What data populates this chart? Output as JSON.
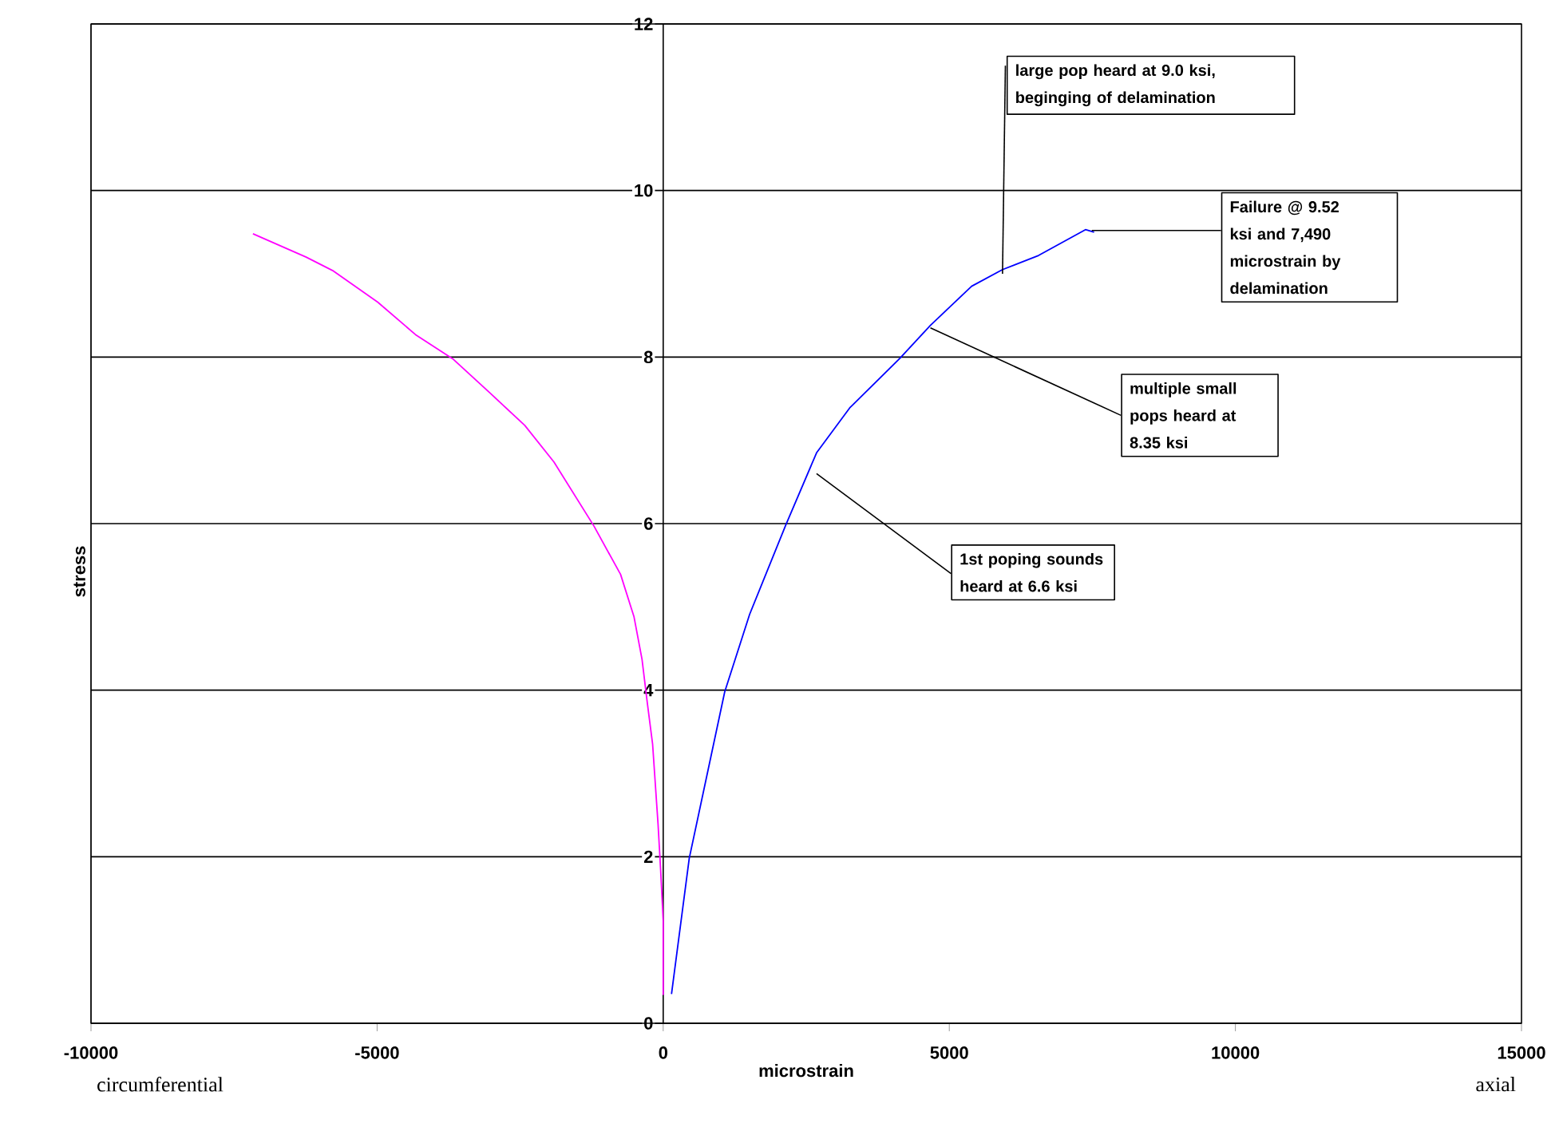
{
  "chart_data": {
    "type": "line",
    "xlabel": "microstrain",
    "ylabel": "stress",
    "xlim": [
      -10000,
      15000
    ],
    "ylim": [
      0,
      12
    ],
    "xticks": [
      -10000,
      -5000,
      0,
      5000,
      10000,
      15000
    ],
    "yticks": [
      0,
      2,
      4,
      6,
      8,
      10,
      12
    ],
    "grid": "y",
    "marker": "none",
    "line_style": "solid",
    "series": [
      {
        "color": "#ff00ff",
        "x": [
          0,
          0,
          -45,
          -90,
          -185,
          -280,
          -370,
          -510,
          -745,
          -1210,
          -1910,
          -2420,
          -3030,
          -3680,
          -4330,
          -4990,
          -5780,
          -6240,
          -7170
        ],
        "values": [
          0.34,
          1.23,
          1.84,
          2.39,
          3.35,
          3.86,
          4.37,
          4.88,
          5.39,
          5.97,
          6.74,
          7.18,
          7.57,
          7.98,
          8.27,
          8.66,
          9.04,
          9.2,
          9.48
        ]
      },
      {
        "color": "#0000ff",
        "x": [
          145,
          455,
          1075,
          1510,
          2140,
          2680,
          3260,
          4130,
          4670,
          5390,
          5930,
          6560,
          7380,
          7530
        ],
        "values": [
          0.35,
          1.98,
          3.98,
          4.91,
          5.98,
          6.85,
          7.39,
          7.98,
          8.38,
          8.85,
          9.05,
          9.22,
          9.53,
          9.5
        ]
      }
    ],
    "annotations": [
      {
        "text": "large pop heard at 9.0 ksi, beginging of delamination",
        "x": 5930,
        "y": 9.0
      },
      {
        "text": "Failure @ 9.52 ksi and 7,490 microstrain by delamination",
        "x": 7490,
        "y": 9.52
      },
      {
        "text": "multiple small pops heard at 8.35 ksi",
        "x": 4670,
        "y": 8.35
      },
      {
        "text": "1st poping sounds heard at 6.6 ksi",
        "x": 2680,
        "y": 6.6
      },
      "circumferential",
      "axial"
    ]
  }
}
